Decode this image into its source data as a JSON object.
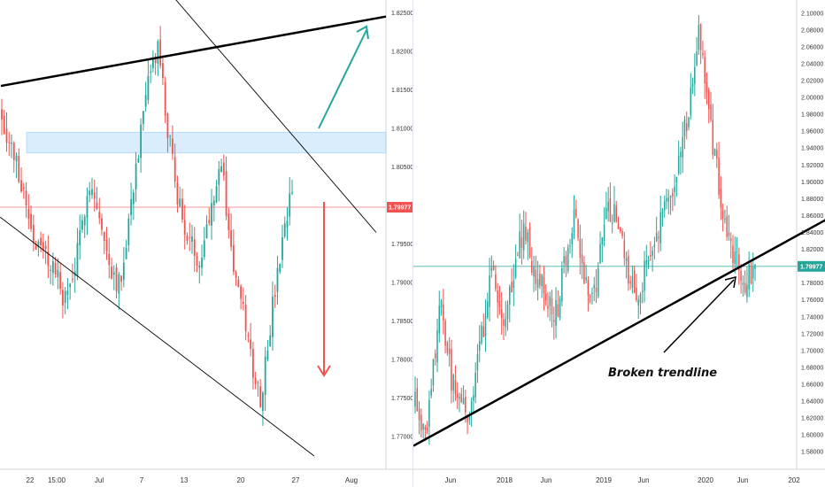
{
  "colors": {
    "up": "#26a69a",
    "down": "#ef5350",
    "left_price_line": "#ef5350",
    "right_price_line": "#26a69a",
    "zone_fill": "#bbdefb",
    "zone_border": "#64b5f6",
    "trendline": "#000000",
    "up_arrow": "#26a69a",
    "down_arrow": "#ef5350",
    "axis_text": "#333333"
  },
  "chart_data": [
    {
      "type": "candlestick",
      "panel": "left",
      "ylim": [
        1.7675,
        1.8255
      ],
      "y_ticks": [
        "1.82500",
        "1.82000",
        "1.81500",
        "1.81000",
        "1.80500",
        "1.80000",
        "1.79500",
        "1.79000",
        "1.78500",
        "1.78000",
        "1.77500",
        "1.77000"
      ],
      "x_tick_labels": [
        "22",
        "15:00",
        "Jul",
        "7",
        "13",
        "20",
        "27",
        "Aug"
      ],
      "last_price": 1.79977,
      "last_price_label": "1.79977",
      "resistance_zone": [
        1.8068,
        1.8095
      ],
      "candle_path": [
        1.812,
        1.808,
        1.805,
        1.801,
        1.796,
        1.794,
        1.793,
        1.791,
        1.7875,
        1.7905,
        1.7955,
        1.8035,
        1.8005,
        1.795,
        1.792,
        1.7895,
        1.797,
        1.8045,
        1.811,
        1.8175,
        1.8205,
        1.8105,
        1.804,
        1.798,
        1.795,
        1.793,
        1.7965,
        1.802,
        1.8055,
        1.796,
        1.789,
        1.785,
        1.779,
        1.775,
        1.783,
        1.79,
        1.796,
        1.802
      ],
      "trendlines": {
        "upper": [
          [
            1,
            1.8155
          ],
          [
            436,
            1.8245
          ]
        ],
        "falling_channel_top": [
          [
            140,
            1.8345
          ],
          [
            425,
            1.7965
          ]
        ],
        "falling_channel_bottom": [
          [
            0,
            1.7985
          ],
          [
            355,
            1.7675
          ]
        ]
      }
    },
    {
      "type": "candlestick",
      "panel": "right",
      "ylim": [
        1.575,
        2.105
      ],
      "y_ticks": [
        "2.10000",
        "2.08000",
        "2.06000",
        "2.04000",
        "2.02000",
        "2.00000",
        "1.98000",
        "1.96000",
        "1.94000",
        "1.92000",
        "1.90000",
        "1.88000",
        "1.86000",
        "1.84000",
        "1.82000",
        "1.80000",
        "1.78000",
        "1.76000",
        "1.74000",
        "1.72000",
        "1.70000",
        "1.68000",
        "1.66000",
        "1.64000",
        "1.62000",
        "1.60000",
        "1.58000"
      ],
      "x_tick_labels": [
        "Jun",
        "2018",
        "Jun",
        "2019",
        "Jun",
        "2020",
        "Jun",
        "202"
      ],
      "last_price": 1.79977,
      "last_price_label": "1.79977",
      "annotation": "Broken trendline",
      "candle_path": [
        1.66,
        1.62,
        1.6,
        1.64,
        1.71,
        1.75,
        1.7,
        1.67,
        1.65,
        1.63,
        1.62,
        1.64,
        1.68,
        1.72,
        1.76,
        1.79,
        1.77,
        1.74,
        1.76,
        1.79,
        1.82,
        1.84,
        1.83,
        1.79,
        1.77,
        1.78,
        1.76,
        1.74,
        1.76,
        1.8,
        1.83,
        1.86,
        1.82,
        1.78,
        1.75,
        1.78,
        1.82,
        1.85,
        1.87,
        1.85,
        1.83,
        1.8,
        1.79,
        1.77,
        1.78,
        1.8,
        1.82,
        1.84,
        1.86,
        1.88,
        1.9,
        1.92,
        1.95,
        1.98,
        2.02,
        2.08,
        2.04,
        1.98,
        1.94,
        1.9,
        1.86,
        1.83,
        1.81,
        1.79,
        1.78,
        1.79,
        1.8
      ],
      "trendlines": {
        "support": [
          [
            0,
            1.587
          ],
          [
            466,
            1.855
          ]
        ]
      }
    }
  ]
}
